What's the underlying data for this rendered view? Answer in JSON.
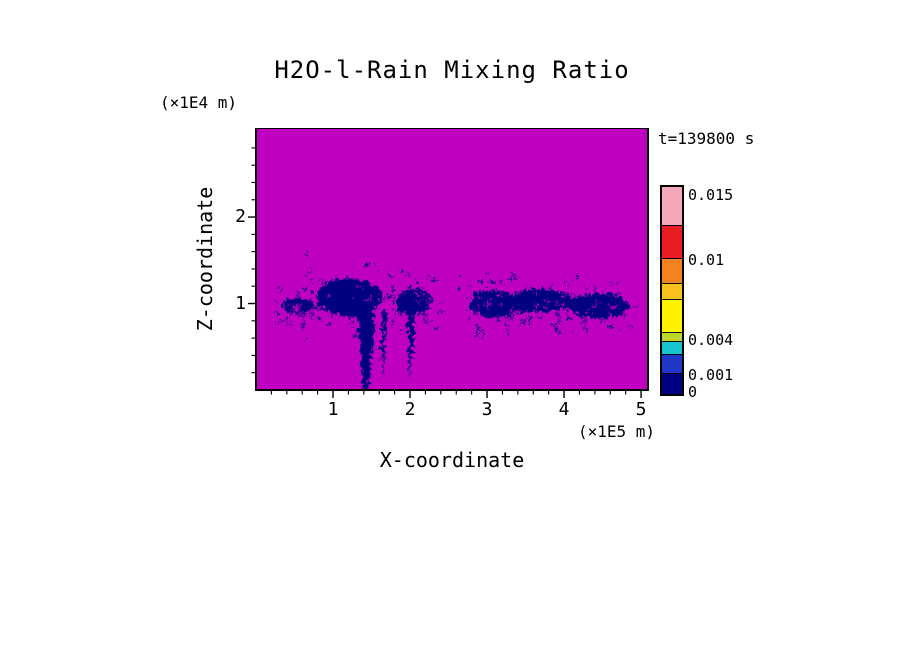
{
  "chart_data": {
    "type": "heatmap",
    "title": "H2O-l-Rain Mixing Ratio",
    "xlabel": "X-coordinate",
    "ylabel": "Z-coordinate",
    "x_units_label": "(×1E5 m)",
    "y_units_label": "(×1E4 m)",
    "time_annotation": "t=139800 s",
    "xlim": [
      0,
      5.09
    ],
    "ylim": [
      0,
      3.03
    ],
    "x_major_ticks": [
      1,
      2,
      3,
      4,
      5
    ],
    "y_major_ticks": [
      1,
      2
    ],
    "x_minor_step": 0.2,
    "y_minor_step": 0.2,
    "grid": false,
    "field_background_color": "#C000C0",
    "rain_color": "#000080",
    "colorbar": {
      "position": "right",
      "segments_top_to_bottom": [
        {
          "color": "#F2A7BB",
          "frac": 19
        },
        {
          "color": "#EC1C24",
          "frac": 16
        },
        {
          "color": "#F58220",
          "frac": 12
        },
        {
          "color": "#F9C21A",
          "frac": 8
        },
        {
          "color": "#FFF200",
          "frac": 16
        },
        {
          "color": "#BCD62B",
          "frac": 4
        },
        {
          "color": "#17C3CF",
          "frac": 6
        },
        {
          "color": "#2038C8",
          "frac": 9
        },
        {
          "color": "#000080",
          "frac": 10
        }
      ],
      "labels": [
        {
          "text": "0.015",
          "pos_pct_from_top": 5
        },
        {
          "text": "0.01",
          "pos_pct_from_top": 36
        },
        {
          "text": "0.004",
          "pos_pct_from_top": 75
        },
        {
          "text": "0.001",
          "pos_pct_from_top": 92
        },
        {
          "text": "0",
          "pos_pct_from_top": 100
        }
      ]
    },
    "features": [
      {
        "type": "blob",
        "cx": 0.52,
        "cz": 1.0,
        "rx": 0.22,
        "rz": 0.09
      },
      {
        "type": "blob",
        "cx": 1.18,
        "cz": 1.1,
        "rx": 0.42,
        "rz": 0.22
      },
      {
        "type": "shaft",
        "points": [
          [
            1.28,
            1.05
          ],
          [
            1.52,
            1.08
          ],
          [
            1.5,
            0.6
          ],
          [
            1.44,
            0.04
          ],
          [
            1.36,
            0.04
          ],
          [
            1.32,
            0.6
          ]
        ]
      },
      {
        "type": "shaft",
        "points": [
          [
            1.6,
            0.92
          ],
          [
            1.67,
            0.92
          ],
          [
            1.645,
            0.45
          ],
          [
            1.61,
            0.12
          ]
        ]
      },
      {
        "type": "blob",
        "cx": 2.02,
        "cz": 1.05,
        "rx": 0.24,
        "rz": 0.15
      },
      {
        "type": "shaft",
        "points": [
          [
            1.94,
            1.0
          ],
          [
            2.04,
            1.0
          ],
          [
            2.02,
            0.5
          ],
          [
            1.97,
            0.14
          ]
        ]
      },
      {
        "type": "blob",
        "cx": 3.05,
        "cz": 1.02,
        "rx": 0.3,
        "rz": 0.16
      },
      {
        "type": "blob",
        "cx": 3.66,
        "cz": 1.06,
        "rx": 0.42,
        "rz": 0.13
      },
      {
        "type": "blob",
        "cx": 4.42,
        "cz": 1.0,
        "rx": 0.4,
        "rz": 0.14
      }
    ]
  }
}
